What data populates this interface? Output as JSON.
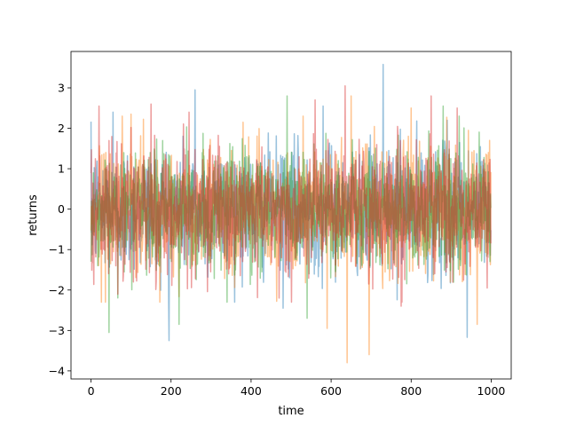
{
  "chart_data": {
    "type": "line",
    "title": "",
    "xlabel": "time",
    "ylabel": "returns",
    "xlim": [
      -50,
      1050
    ],
    "ylim": [
      -4.2,
      3.9
    ],
    "x_ticks": [
      0,
      200,
      400,
      600,
      800,
      1000
    ],
    "y_ticks": [
      -4,
      -3,
      -2,
      -1,
      0,
      1,
      2,
      3
    ],
    "grid": false,
    "legend": "none",
    "n_points": 1000,
    "series_alpha": 0.45,
    "series": [
      {
        "color": "#1f77b4",
        "extrema": [
          [
            55,
            2.4
          ],
          [
            195,
            -3.25
          ],
          [
            260,
            2.95
          ],
          [
            480,
            -2.45
          ],
          [
            580,
            2.55
          ],
          [
            730,
            3.58
          ],
          [
            940,
            -3.17
          ],
          [
            890,
            2.2
          ]
        ]
      },
      {
        "color": "#ff7f0e",
        "extrema": [
          [
            100,
            2.35
          ],
          [
            380,
            2.15
          ],
          [
            590,
            -2.95
          ],
          [
            640,
            -3.8
          ],
          [
            650,
            2.8
          ],
          [
            695,
            -3.6
          ],
          [
            800,
            2.5
          ],
          [
            965,
            -2.85
          ],
          [
            530,
            2.3
          ]
        ]
      },
      {
        "color": "#2ca02c",
        "extrema": [
          [
            45,
            -3.05
          ],
          [
            220,
            -2.85
          ],
          [
            490,
            2.8
          ],
          [
            540,
            -2.7
          ],
          [
            880,
            2.55
          ],
          [
            920,
            2.3
          ],
          [
            1000,
            2.0
          ],
          [
            340,
            -2.3
          ]
        ]
      },
      {
        "color": "#d62728",
        "extrema": [
          [
            20,
            2.55
          ],
          [
            150,
            2.6
          ],
          [
            245,
            2.4
          ],
          [
            470,
            -2.2
          ],
          [
            560,
            2.7
          ],
          [
            635,
            3.05
          ],
          [
            850,
            2.8
          ],
          [
            915,
            2.5
          ],
          [
            775,
            -2.4
          ]
        ]
      }
    ]
  }
}
